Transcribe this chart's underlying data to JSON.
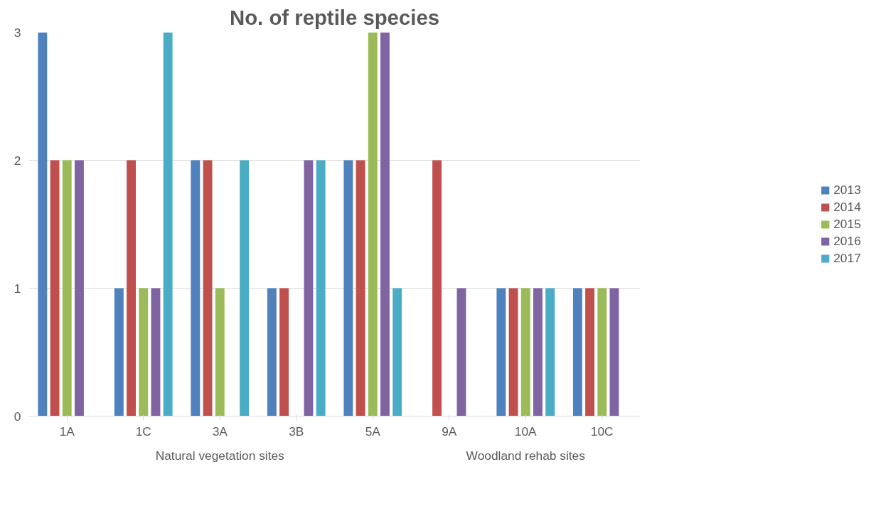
{
  "chart_data": {
    "type": "bar",
    "title": "No. of reptile species",
    "categories": [
      "1A",
      "1C",
      "3A",
      "3B",
      "5A",
      "9A",
      "10A",
      "10C"
    ],
    "series": [
      {
        "name": "2013",
        "color": "#4f81bd",
        "values": [
          3,
          1,
          2,
          1,
          2,
          0,
          1,
          1
        ]
      },
      {
        "name": "2014",
        "color": "#c0504d",
        "values": [
          2,
          2,
          2,
          1,
          2,
          2,
          1,
          1
        ]
      },
      {
        "name": "2015",
        "color": "#9bbb59",
        "values": [
          2,
          1,
          1,
          0,
          3,
          0,
          1,
          1
        ]
      },
      {
        "name": "2016",
        "color": "#8064a2",
        "values": [
          2,
          1,
          0,
          2,
          3,
          1,
          1,
          1
        ]
      },
      {
        "name": "2017",
        "color": "#4bacc6",
        "values": [
          0,
          3,
          2,
          2,
          1,
          0,
          1,
          0
        ]
      }
    ],
    "annotations": [
      "Natural vegetation sites",
      "Woodland rehab sites"
    ],
    "ylim": [
      0,
      3
    ],
    "yticks": [
      0,
      1,
      2,
      3
    ],
    "grid": "y",
    "legend": "right"
  }
}
